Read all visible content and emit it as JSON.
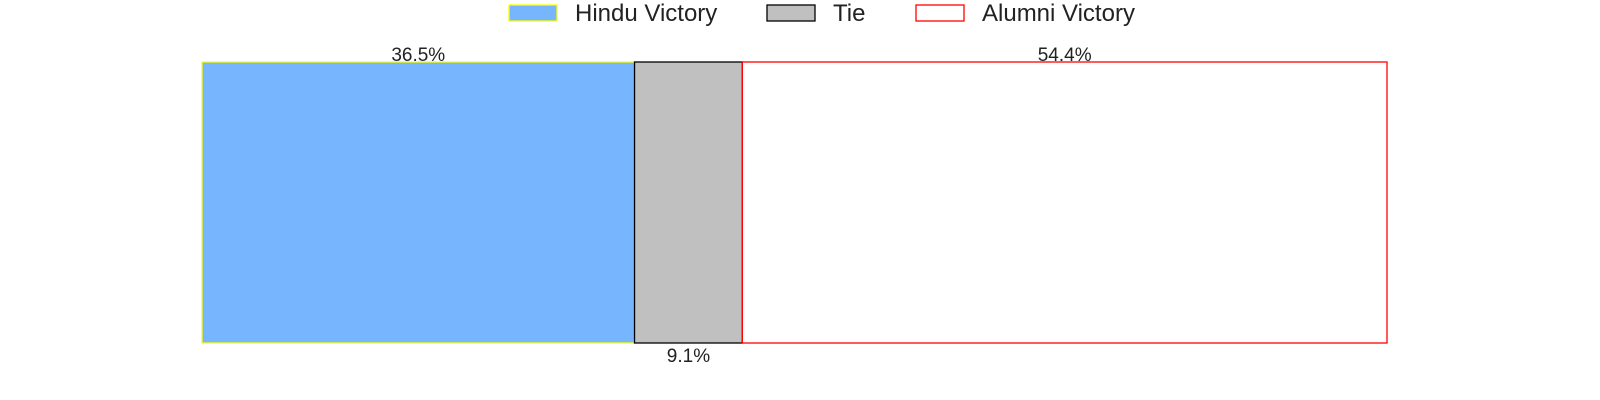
{
  "chart_data": {
    "type": "bar",
    "orientation": "horizontal",
    "stacked": true,
    "normalized": true,
    "title": "",
    "xlabel": "",
    "ylabel": "",
    "xlim": [
      0,
      100
    ],
    "grid": false,
    "axes_visible": false,
    "legend_position": "top-center",
    "series": [
      {
        "name": "Hindu Victory",
        "value": 36.5,
        "label": "36.5%",
        "label_position": "above",
        "fill": "#77b5fe",
        "stroke": "#ffff00"
      },
      {
        "name": "Tie",
        "value": 9.1,
        "label": "9.1%",
        "label_position": "below",
        "fill": "#c0c0c0",
        "stroke": "#000000"
      },
      {
        "name": "Alumni Victory",
        "value": 54.4,
        "label": "54.4%",
        "label_position": "above",
        "fill": "#ffffff",
        "stroke": "#ff0000"
      }
    ]
  }
}
